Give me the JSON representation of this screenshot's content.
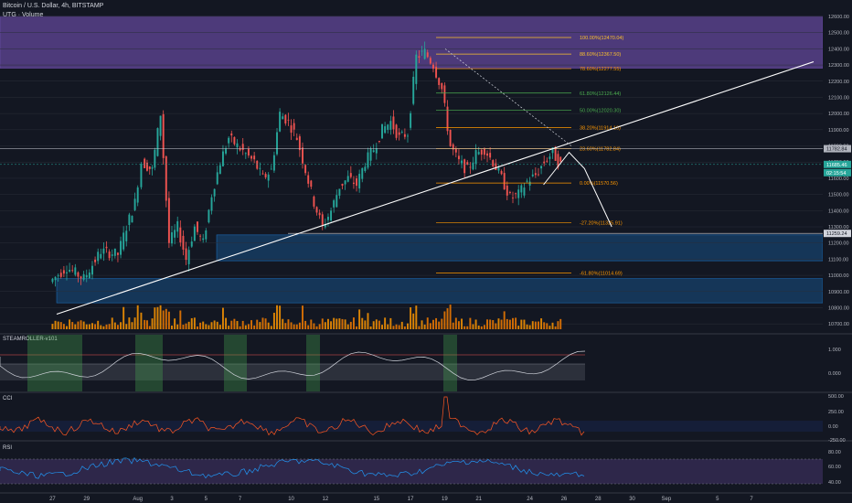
{
  "header": {
    "symbol": "Bitcoin / U.S. Dollar, 4h, BITSTAMP",
    "subtitle": "UTG · Volume"
  },
  "panes": {
    "steamroller": {
      "name": "STEAMROLLER-v101",
      "ticks": [
        "1.000",
        "0.000"
      ]
    },
    "cci": {
      "name": "CCI",
      "ticks": [
        "500.00",
        "250.00",
        "0.00",
        "-250.00"
      ]
    },
    "rsi": {
      "name": "RSI",
      "ticks": [
        "80.00",
        "60.00",
        "40.00"
      ]
    }
  },
  "chart_data": {
    "type": "candlestick",
    "price_axis": {
      "ylim": [
        10650,
        12600
      ],
      "ticks": [
        12600,
        12500,
        12400,
        12300,
        12200,
        12100,
        12000,
        11900,
        11800,
        11700,
        11600,
        11500,
        11400,
        11300,
        11200,
        11100,
        11000,
        10900,
        10800,
        10700
      ],
      "tick_labels": [
        "12600.00",
        "12500.00",
        "12400.00",
        "12300.00",
        "12200.00",
        "12100.00",
        "12000.00",
        "11900.00",
        "11800.00",
        "11700.00",
        "11600.00",
        "11500.00",
        "11400.00",
        "11300.00",
        "11200.00",
        "11100.00",
        "11000.00",
        "10900.00",
        "10800.00",
        "10700.00"
      ],
      "current_price_label": "11685.46",
      "countdown_label": "02:15:54",
      "level_label_1": "11782.84",
      "level_label_2": "11259.24"
    },
    "time_axis": {
      "labels": [
        "27",
        "29",
        "Aug",
        "3",
        "5",
        "7",
        "10",
        "12",
        "15",
        "17",
        "19",
        "21",
        "24",
        "26",
        "28",
        "30",
        "Sep",
        "5",
        "7"
      ],
      "positions": [
        -7,
        -5,
        -2,
        0,
        2,
        4,
        7,
        9,
        12,
        14,
        16,
        18,
        21,
        23,
        25,
        27,
        29,
        32,
        34
      ]
    },
    "fib_levels": [
      {
        "label": "100.00%(12470.04)",
        "price": 12470.04,
        "color": "#fbc02d"
      },
      {
        "label": "88.60%(12367.50)",
        "price": 12367.5,
        "color": "#fbc02d"
      },
      {
        "label": "78.60%(12277.55)",
        "price": 12277.55,
        "color": "#ff9800"
      },
      {
        "label": "61.80%(12126.44)",
        "price": 12126.44,
        "color": "#4caf50"
      },
      {
        "label": "50.00%(12020.30)",
        "price": 12020.3,
        "color": "#4caf50"
      },
      {
        "label": "38.20%(11914.16)",
        "price": 11914.16,
        "color": "#ff9800"
      },
      {
        "label": "23.60%(11782.84)",
        "price": 11782.84,
        "color": "#ff9800"
      },
      {
        "label": "0.00%(11570.56)",
        "price": 11570.56,
        "color": "#ff9800"
      },
      {
        "label": "-27.20%(11325.91)",
        "price": 11325.91,
        "color": "#ff9800"
      },
      {
        "label": "-61.80%(11014.69)",
        "price": 11014.69,
        "color": "#ff9800"
      }
    ],
    "zones": [
      {
        "from": 12280,
        "to": 12600,
        "color": "#7e57c2"
      },
      {
        "from": 11090,
        "to": 11250,
        "color": "#1e88e5"
      },
      {
        "from": 10830,
        "to": 10980,
        "color": "#1e88e5"
      }
    ],
    "trendline": {
      "start_price": 10760,
      "end_price": 12320
    },
    "anchor_candles": [
      {
        "t": -7.0,
        "price": 10960
      },
      {
        "t": -6.0,
        "price": 11050
      },
      {
        "t": -5.0,
        "price": 10980
      },
      {
        "t": -4.0,
        "price": 11150
      },
      {
        "t": -3.0,
        "price": 11130
      },
      {
        "t": -2.5,
        "price": 11300
      },
      {
        "t": -2.0,
        "price": 11450
      },
      {
        "t": -1.6,
        "price": 11700
      },
      {
        "t": -1.0,
        "price": 11650
      },
      {
        "t": -0.5,
        "price": 12000
      },
      {
        "t": 0.0,
        "price": 11200
      },
      {
        "t": 0.5,
        "price": 11300
      },
      {
        "t": 1.0,
        "price": 11100
      },
      {
        "t": 1.5,
        "price": 11300
      },
      {
        "t": 2.0,
        "price": 11200
      },
      {
        "t": 2.5,
        "price": 11500
      },
      {
        "t": 3.0,
        "price": 11700
      },
      {
        "t": 3.5,
        "price": 11850
      },
      {
        "t": 4.0,
        "price": 11800
      },
      {
        "t": 5.0,
        "price": 11700
      },
      {
        "t": 5.5,
        "price": 11600
      },
      {
        "t": 6.0,
        "price": 11650
      },
      {
        "t": 6.5,
        "price": 12000
      },
      {
        "t": 7.0,
        "price": 11950
      },
      {
        "t": 7.5,
        "price": 11850
      },
      {
        "t": 8.0,
        "price": 11650
      },
      {
        "t": 8.5,
        "price": 11450
      },
      {
        "t": 9.0,
        "price": 11300
      },
      {
        "t": 9.5,
        "price": 11400
      },
      {
        "t": 10.0,
        "price": 11550
      },
      {
        "t": 10.5,
        "price": 11600
      },
      {
        "t": 11.0,
        "price": 11560
      },
      {
        "t": 11.5,
        "price": 11700
      },
      {
        "t": 12.0,
        "price": 11780
      },
      {
        "t": 12.5,
        "price": 11900
      },
      {
        "t": 13.0,
        "price": 11950
      },
      {
        "t": 13.5,
        "price": 11850
      },
      {
        "t": 14.0,
        "price": 11880
      },
      {
        "t": 14.5,
        "price": 12350
      },
      {
        "t": 15.0,
        "price": 12380
      },
      {
        "t": 15.5,
        "price": 12300
      },
      {
        "t": 16.0,
        "price": 12150
      },
      {
        "t": 16.5,
        "price": 11800
      },
      {
        "t": 17.0,
        "price": 11700
      },
      {
        "t": 17.5,
        "price": 11650
      },
      {
        "t": 18.0,
        "price": 11750
      },
      {
        "t": 18.5,
        "price": 11780
      },
      {
        "t": 19.0,
        "price": 11700
      },
      {
        "t": 19.5,
        "price": 11600
      },
      {
        "t": 20.0,
        "price": 11480
      },
      {
        "t": 20.5,
        "price": 11500
      },
      {
        "t": 21.0,
        "price": 11580
      },
      {
        "t": 21.5,
        "price": 11620
      },
      {
        "t": 22.0,
        "price": 11700
      },
      {
        "t": 22.5,
        "price": 11760
      },
      {
        "t": 22.8,
        "price": 11700
      },
      {
        "t": 23.0,
        "price": 11685
      }
    ]
  }
}
